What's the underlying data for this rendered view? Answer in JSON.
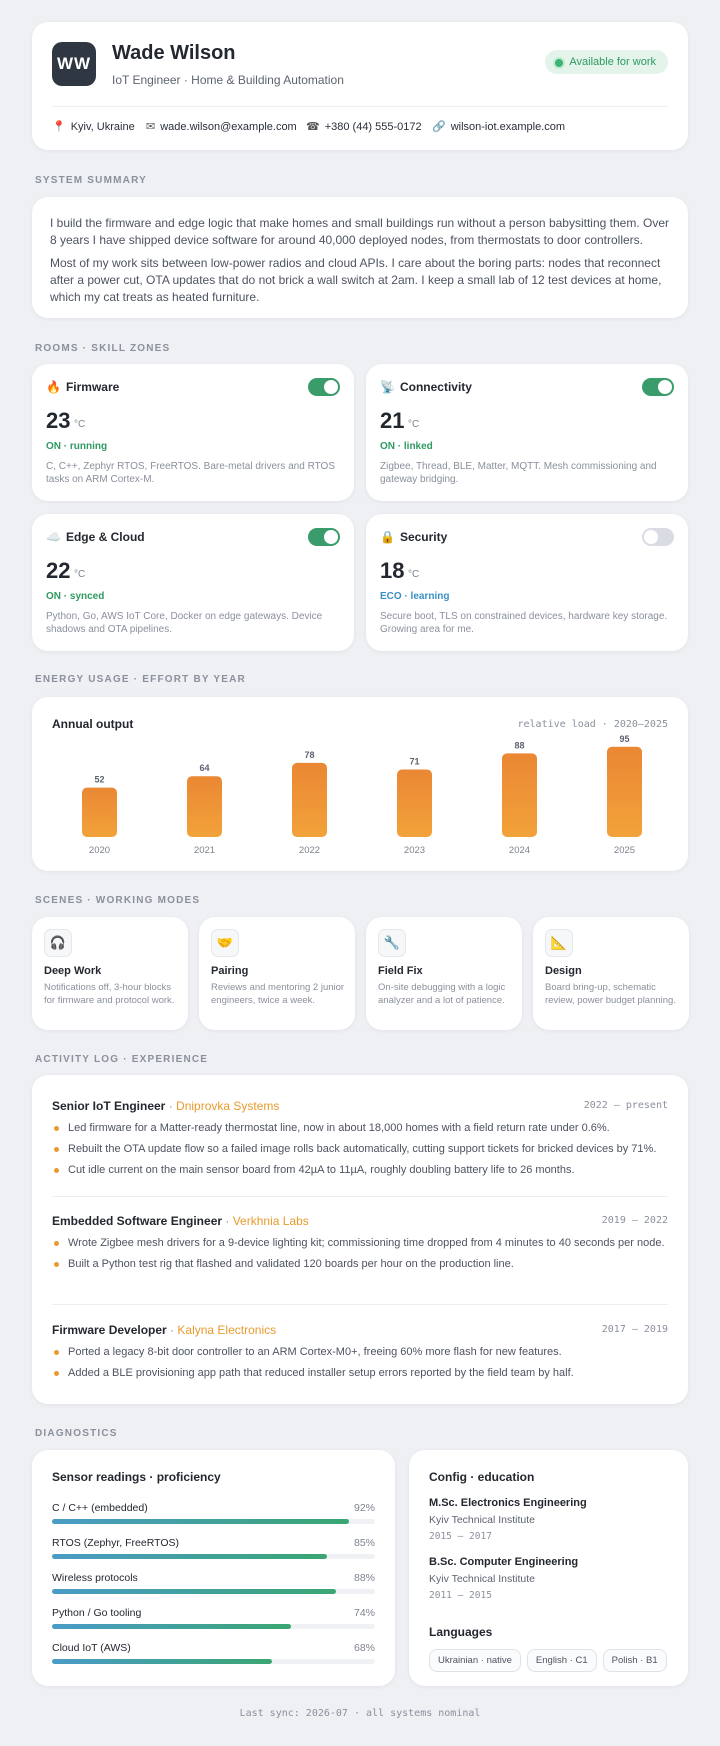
{
  "header": {
    "initials": "WW",
    "name": "Wade Wilson",
    "role": "IoT Engineer · Home & Building Automation",
    "badge": "Available for work",
    "contacts": [
      {
        "icon": "pin-icon",
        "glyph": "📍",
        "text": "Kyiv, Ukraine"
      },
      {
        "icon": "mail-icon",
        "glyph": "✉",
        "text": "wade.wilson@example.com"
      },
      {
        "icon": "phone-icon",
        "glyph": "☎",
        "text": "+380 (44) 555-0172"
      },
      {
        "icon": "link-icon",
        "glyph": "🔗",
        "text": "wilson-iot.example.com"
      }
    ]
  },
  "summary": {
    "label": "SYSTEM SUMMARY",
    "p1": "I build the firmware and edge logic that make homes and small buildings run without a person babysitting them. Over 8 years I have shipped device software for around 40,000 deployed nodes, from thermostats to door controllers.",
    "p2": "Most of my work sits between low-power radios and cloud APIs. I care about the boring parts: nodes that reconnect after a power cut, OTA updates that do not brick a wall switch at 2am. I keep a small lab of 12 test devices at home, which my cat treats as heated furniture."
  },
  "zones": {
    "label": "ROOMS · SKILL ZONES",
    "items": [
      {
        "icon": "fire-icon",
        "glyph": "🔥",
        "title": "Firmware",
        "temp": "23",
        "unit": "°C",
        "status": "ON · running",
        "on": true,
        "desc": "C, C++, Zephyr RTOS, FreeRTOS. Bare-metal drivers and RTOS tasks on ARM Cortex-M."
      },
      {
        "icon": "satellite-icon",
        "glyph": "📡",
        "title": "Connectivity",
        "temp": "21",
        "unit": "°C",
        "status": "ON · linked",
        "on": true,
        "desc": "Zigbee, Thread, BLE, Matter, MQTT. Mesh commissioning and gateway bridging."
      },
      {
        "icon": "cloud-icon",
        "glyph": "☁️",
        "title": "Edge & Cloud",
        "temp": "22",
        "unit": "°C",
        "status": "ON · synced",
        "on": true,
        "desc": "Python, Go, AWS IoT Core, Docker on edge gateways. Device shadows and OTA pipelines."
      },
      {
        "icon": "lock-icon",
        "glyph": "🔒",
        "title": "Security",
        "temp": "18",
        "unit": "°C",
        "status": "ECO · learning",
        "on": false,
        "desc": "Secure boot, TLS on constrained devices, hardware key storage. Growing area for me."
      }
    ]
  },
  "energy": {
    "label": "ENERGY USAGE · EFFORT BY YEAR",
    "title": "Annual output",
    "meta": "relative load · 2020–2025"
  },
  "chart_data": {
    "type": "bar",
    "title": "Annual output",
    "subtitle": "relative load · 2020–2025",
    "categories": [
      "2020",
      "2021",
      "2022",
      "2023",
      "2024",
      "2025"
    ],
    "values": [
      52,
      64,
      78,
      71,
      88,
      95
    ],
    "ylim": [
      0,
      100
    ],
    "grid": false,
    "bar_color": "#ec8a33"
  },
  "scenes": {
    "label": "SCENES · WORKING MODES",
    "items": [
      {
        "icon": "headphones-icon",
        "glyph": "🎧",
        "title": "Deep Work",
        "desc": "Notifications off, 3-hour blocks for firmware and protocol work."
      },
      {
        "icon": "handshake-icon",
        "glyph": "🤝",
        "title": "Pairing",
        "desc": "Reviews and mentoring 2 junior engineers, twice a week."
      },
      {
        "icon": "wrench-icon",
        "glyph": "🔧",
        "title": "Field Fix",
        "desc": "On-site debugging with a logic analyzer and a lot of patience."
      },
      {
        "icon": "ruler-icon",
        "glyph": "📐",
        "title": "Design",
        "desc": "Board bring-up, schematic review, power budget planning."
      }
    ]
  },
  "experience": {
    "label": "ACTIVITY LOG · EXPERIENCE",
    "jobs": [
      {
        "title": "Senior IoT Engineer",
        "company": "Dniprovka Systems",
        "dates": "2022 – present",
        "bullets": [
          "Led firmware for a Matter-ready thermostat line, now in about 18,000 homes with a field return rate under 0.6%.",
          "Rebuilt the OTA update flow so a failed image rolls back automatically, cutting support tickets for bricked devices by 71%.",
          "Cut idle current on the main sensor board from 42µA to 11µA, roughly doubling battery life to 26 months."
        ]
      },
      {
        "title": "Embedded Software Engineer",
        "company": "Verkhnia Labs",
        "dates": "2019 – 2022",
        "bullets": [
          "Wrote Zigbee mesh drivers for a 9-device lighting kit; commissioning time dropped from 4 minutes to 40 seconds per node.",
          "Built a Python test rig that flashed and validated 120 boards per hour on the production line."
        ]
      },
      {
        "title": "Firmware Developer",
        "company": "Kalyna Electronics",
        "dates": "2017 – 2019",
        "bullets": [
          "Ported a legacy 8-bit door controller to an ARM Cortex-M0+, freeing 60% more flash for new features.",
          "Added a BLE provisioning app path that reduced installer setup errors reported by the field team by half."
        ]
      }
    ]
  },
  "diagnostics": {
    "label": "DIAGNOSTICS",
    "skills_title": "Sensor readings · proficiency",
    "skills": [
      {
        "name": "C / C++ (embedded)",
        "pct": "92%",
        "value": 92
      },
      {
        "name": "RTOS (Zephyr, FreeRTOS)",
        "pct": "85%",
        "value": 85
      },
      {
        "name": "Wireless protocols",
        "pct": "88%",
        "value": 88
      },
      {
        "name": "Python / Go tooling",
        "pct": "74%",
        "value": 74
      },
      {
        "name": "Cloud IoT (AWS)",
        "pct": "68%",
        "value": 68
      }
    ],
    "config_title": "Config · education",
    "education": [
      {
        "degree": "M.Sc. Electronics Engineering",
        "school": "Kyiv Technical Institute",
        "years": "2015 – 2017"
      },
      {
        "degree": "B.Sc. Computer Engineering",
        "school": "Kyiv Technical Institute",
        "years": "2011 – 2015"
      }
    ],
    "languages_title": "Languages",
    "languages": [
      "Ukrainian · native",
      "English · C1",
      "Polish · B1"
    ]
  },
  "footer": "Last sync: 2026-07 · all systems nominal"
}
